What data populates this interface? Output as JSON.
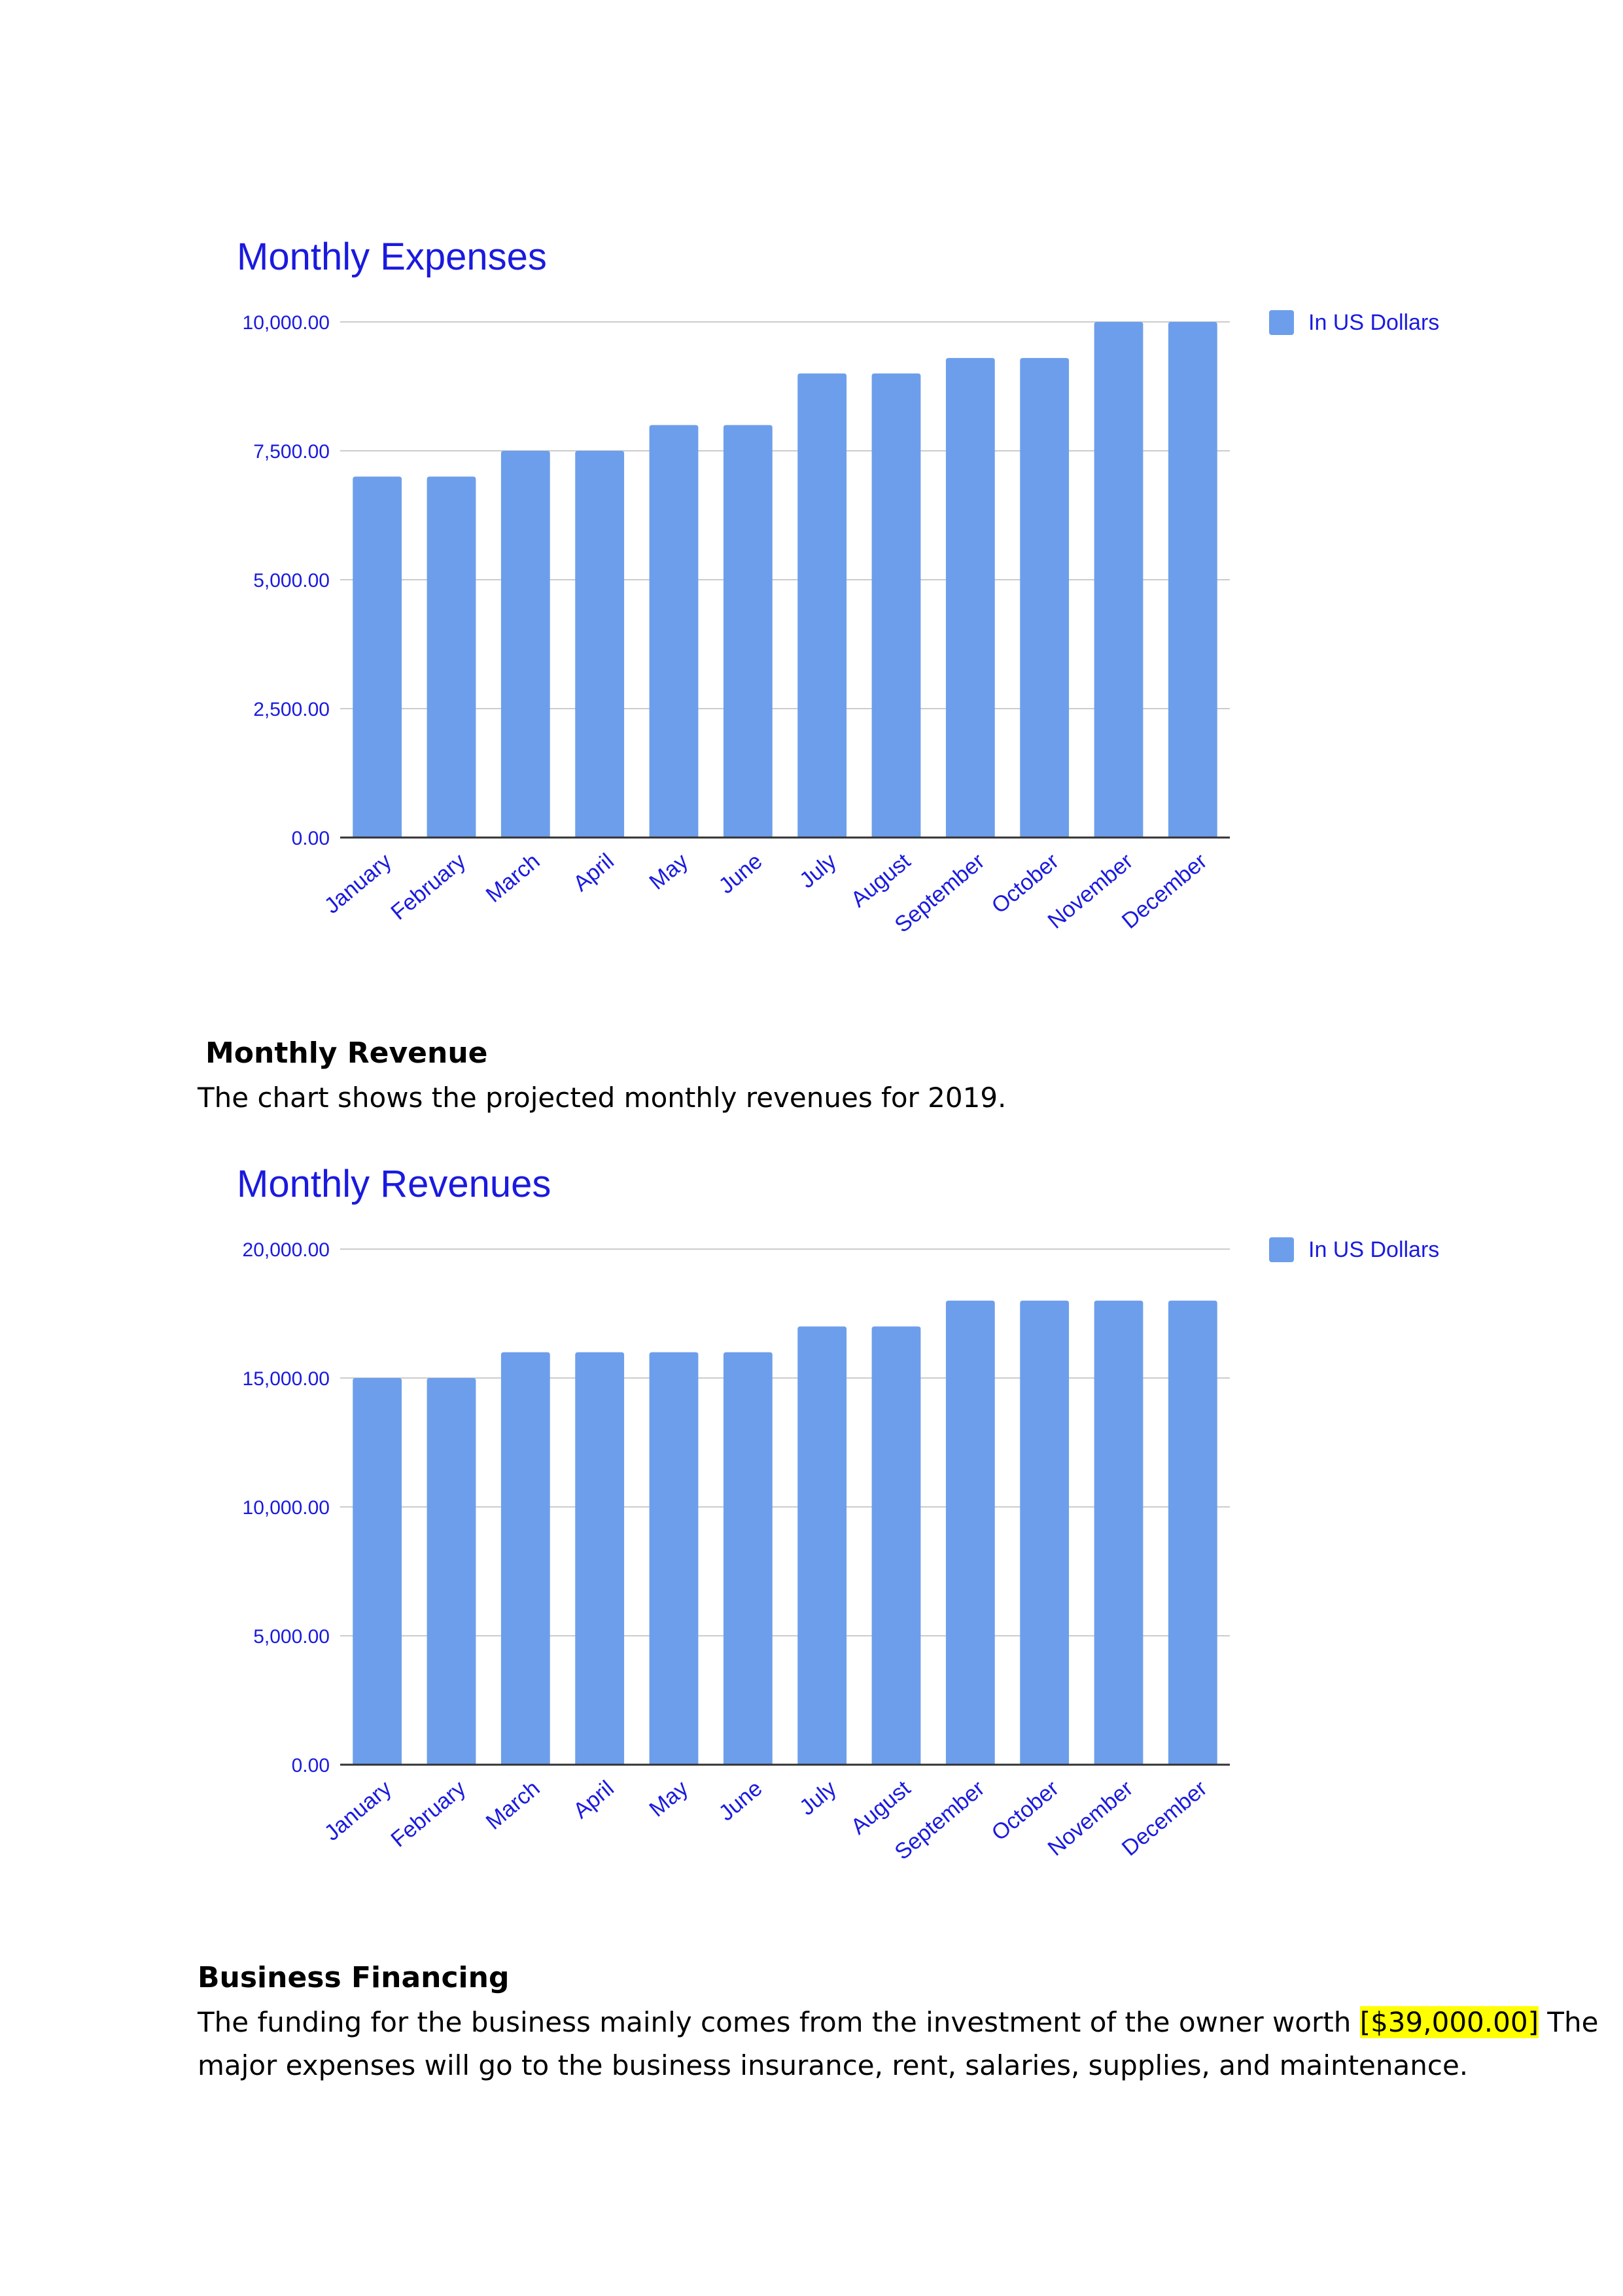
{
  "colors": {
    "bar": "#6d9eeb",
    "text": "#1a1adf",
    "grid": "#cccccc",
    "axis": "#333333",
    "highlight": "#ffff00"
  },
  "sections": {
    "revenue_heading": "Monthly Revenue",
    "revenue_intro": "The chart shows the projected monthly revenues for 2019.",
    "financing_heading": "Business Financing",
    "financing_line1_before": "The funding for the business mainly comes from the investment of the owner worth ",
    "financing_amount": "[$39,000.00]",
    "financing_line1_after": " The",
    "financing_line2": "major expenses will go to the business insurance, rent, salaries, supplies, and maintenance."
  },
  "chart_data": [
    {
      "type": "bar",
      "title": "Monthly Expenses",
      "categories": [
        "January",
        "February",
        "March",
        "April",
        "May",
        "June",
        "July",
        "August",
        "September",
        "October",
        "November",
        "December"
      ],
      "series": [
        {
          "name": "In US Dollars",
          "values": [
            7000,
            7000,
            7500,
            7500,
            8000,
            8000,
            9000,
            9000,
            9300,
            9300,
            10000,
            10000
          ]
        }
      ],
      "ylim": [
        0,
        10000
      ],
      "yticks": [
        "0.00",
        "2,500.00",
        "5,000.00",
        "7,500.00",
        "10,000.00"
      ],
      "grid": true,
      "legend": "top-right"
    },
    {
      "type": "bar",
      "title": "Monthly Revenues",
      "categories": [
        "January",
        "February",
        "March",
        "April",
        "May",
        "June",
        "July",
        "August",
        "September",
        "October",
        "November",
        "December"
      ],
      "series": [
        {
          "name": "In US Dollars",
          "values": [
            15000,
            15000,
            16000,
            16000,
            16000,
            16000,
            17000,
            17000,
            18000,
            18000,
            18000,
            18000
          ]
        }
      ],
      "ylim": [
        0,
        20000
      ],
      "yticks": [
        "0.00",
        "5,000.00",
        "10,000.00",
        "15,000.00",
        "20,000.00"
      ],
      "grid": true,
      "legend": "top-right"
    }
  ]
}
